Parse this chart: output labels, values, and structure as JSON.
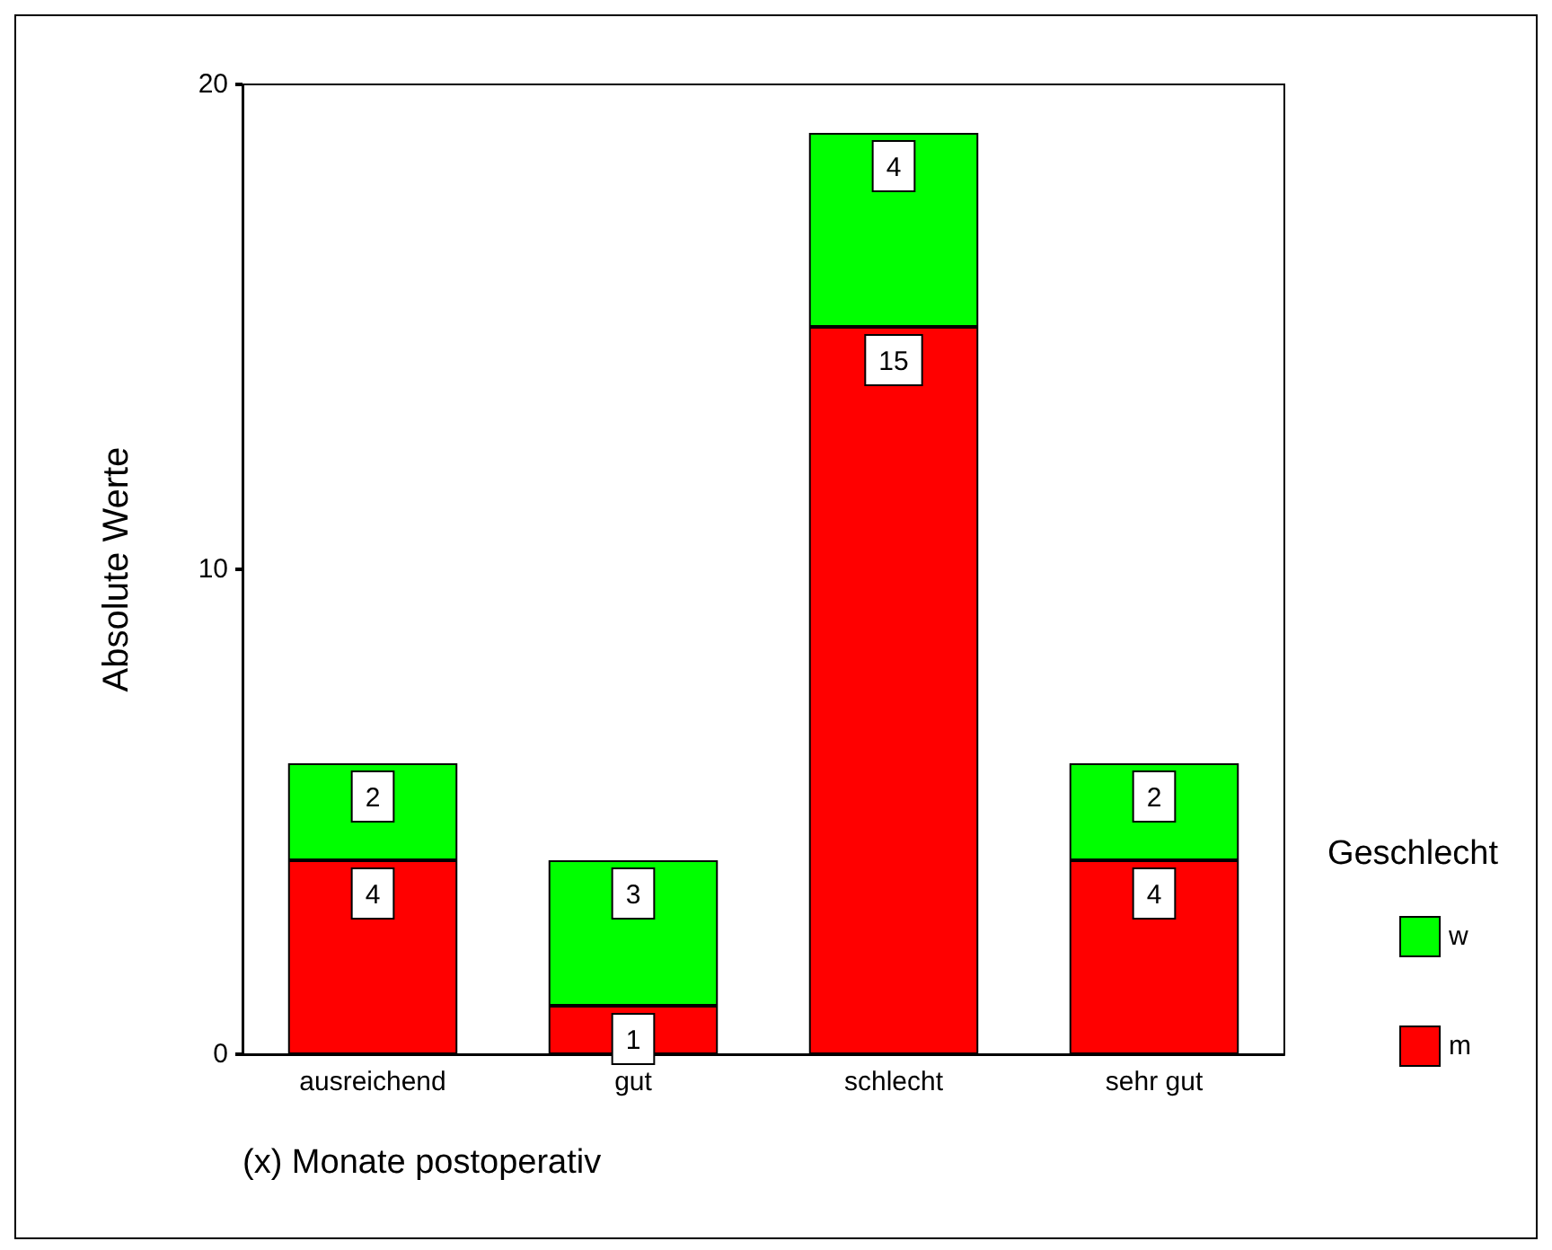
{
  "chart_data": {
    "type": "bar",
    "stacked": true,
    "ylabel": "Absolute Werte",
    "legend_title": "Geschlecht",
    "annotations": [
      "(x) Monate postoperativ"
    ],
    "categories": [
      "ausreichend",
      "gut",
      "schlecht",
      "sehr gut"
    ],
    "series": [
      {
        "name": "m",
        "color": "#ff0000",
        "values": [
          4,
          1,
          15,
          4
        ]
      },
      {
        "name": "w",
        "color": "#00ff00",
        "values": [
          2,
          3,
          4,
          2
        ]
      }
    ],
    "ylim": [
      0,
      20
    ],
    "yticks": [
      0,
      10,
      20
    ],
    "grid": false,
    "legend": "right",
    "data_labels": true
  }
}
